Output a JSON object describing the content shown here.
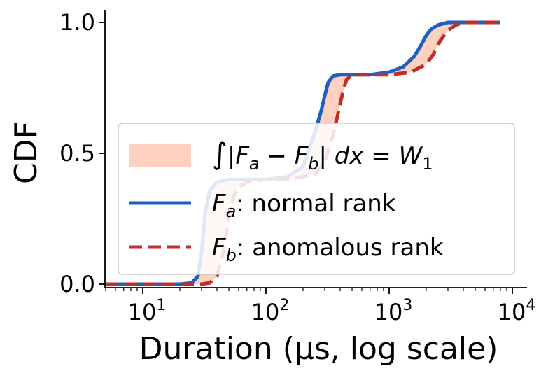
{
  "chart_data": {
    "type": "line",
    "xlabel": "Duration (μs, log scale)",
    "ylabel": "CDF",
    "xscale": "log",
    "xlim": [
      5,
      15000
    ],
    "ylim": [
      0,
      1.05
    ],
    "y_ticks": [
      0.0,
      0.5,
      1.0
    ],
    "y_tick_labels": [
      "0.0",
      "0.5",
      "1.0"
    ],
    "x_ticks": [
      10,
      100,
      1000,
      10000
    ],
    "x_tick_labels": [
      {
        "base": "10",
        "exp": "1"
      },
      {
        "base": "10",
        "exp": "2"
      },
      {
        "base": "10",
        "exp": "3"
      },
      {
        "base": "10",
        "exp": "4"
      }
    ],
    "grid": false,
    "legend_position": "center-left",
    "fill": {
      "label_parts": {
        "integral": "∫",
        "left": "|F",
        "a": "a",
        "minus": " − F",
        "b": "b",
        "right": "| dx = W",
        "one": "1"
      },
      "color": "#fdd0c0"
    },
    "series": [
      {
        "name": "normal rank",
        "symbol": "F",
        "subscript": "a",
        "color": "#1f5fbf",
        "style": "solid",
        "x": [
          5,
          20,
          25,
          28,
          30,
          32,
          35,
          40,
          50,
          70,
          100,
          150,
          200,
          250,
          280,
          300,
          320,
          350,
          400,
          500,
          700,
          1000,
          1300,
          1600,
          1800,
          2000,
          2200,
          2500,
          3000,
          4000,
          6000,
          8000
        ],
        "y": [
          0,
          0,
          0.005,
          0.03,
          0.12,
          0.27,
          0.36,
          0.39,
          0.4,
          0.4,
          0.4,
          0.41,
          0.45,
          0.58,
          0.66,
          0.72,
          0.77,
          0.795,
          0.8,
          0.8,
          0.8,
          0.81,
          0.83,
          0.87,
          0.91,
          0.95,
          0.975,
          0.99,
          1.0,
          1.0,
          1.0,
          1.0
        ]
      },
      {
        "name": "anomalous rank",
        "symbol": "F",
        "subscript": "b",
        "color": "#c0302b",
        "style": "dashed",
        "x": [
          5,
          30,
          35,
          40,
          45,
          50,
          55,
          60,
          70,
          100,
          150,
          250,
          300,
          350,
          380,
          400,
          430,
          450,
          500,
          600,
          1000,
          1500,
          2000,
          2300,
          2600,
          3000,
          3500,
          4000,
          5000,
          8000
        ],
        "y": [
          0,
          0,
          0.005,
          0.03,
          0.12,
          0.26,
          0.34,
          0.37,
          0.39,
          0.4,
          0.4,
          0.42,
          0.47,
          0.57,
          0.64,
          0.69,
          0.75,
          0.78,
          0.8,
          0.8,
          0.8,
          0.81,
          0.84,
          0.88,
          0.93,
          0.97,
          0.99,
          1.0,
          1.0,
          1.0
        ]
      }
    ]
  }
}
